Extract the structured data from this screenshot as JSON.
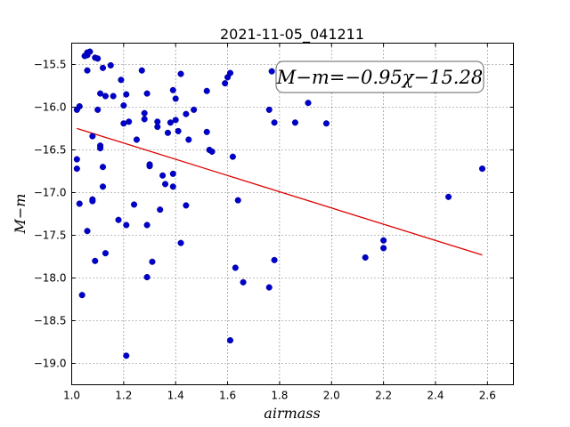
{
  "chart_data": {
    "type": "scatter",
    "title": "2021-11-05_041211",
    "xlabel": "airmass",
    "ylabel": "M−m",
    "xlim": [
      1.0,
      2.7
    ],
    "ylim": [
      -19.25,
      -15.25
    ],
    "y_inverted": true,
    "grid": true,
    "xticks": [
      "1.0",
      "1.2",
      "1.4",
      "1.6",
      "1.8",
      "2.0",
      "2.2",
      "2.4",
      "2.6"
    ],
    "yticks": [
      "−15.5",
      "−16.0",
      "−16.5",
      "−17.0",
      "−17.5",
      "−18.0",
      "−18.5",
      "−19.0"
    ],
    "annotation": "M−m=−0.95χ−15.28",
    "colors": {
      "points": "#0000cc",
      "fit_line": "#dd0000"
    },
    "fit": {
      "slope": -0.95,
      "intercept": -15.28,
      "x_range": [
        1.02,
        2.58
      ]
    },
    "points": [
      [
        1.02,
        -16.03
      ],
      [
        1.03,
        -15.99
      ],
      [
        1.02,
        -16.61
      ],
      [
        1.02,
        -16.72
      ],
      [
        1.03,
        -17.13
      ],
      [
        1.04,
        -18.2
      ],
      [
        1.05,
        -15.4
      ],
      [
        1.06,
        -15.36
      ],
      [
        1.06,
        -15.39
      ],
      [
        1.06,
        -15.57
      ],
      [
        1.06,
        -17.45
      ],
      [
        1.07,
        -15.35
      ],
      [
        1.08,
        -16.34
      ],
      [
        1.08,
        -17.08
      ],
      [
        1.08,
        -17.1
      ],
      [
        1.09,
        -15.42
      ],
      [
        1.09,
        -17.8
      ],
      [
        1.1,
        -15.43
      ],
      [
        1.1,
        -16.03
      ],
      [
        1.11,
        -16.45
      ],
      [
        1.11,
        -16.48
      ],
      [
        1.11,
        -15.84
      ],
      [
        1.12,
        -15.54
      ],
      [
        1.12,
        -16.7
      ],
      [
        1.12,
        -16.93
      ],
      [
        1.13,
        -15.87
      ],
      [
        1.13,
        -17.71
      ],
      [
        1.15,
        -15.51
      ],
      [
        1.16,
        -15.87
      ],
      [
        1.18,
        -17.32
      ],
      [
        1.19,
        -15.68
      ],
      [
        1.2,
        -15.98
      ],
      [
        1.2,
        -16.19
      ],
      [
        1.21,
        -15.85
      ],
      [
        1.21,
        -17.38
      ],
      [
        1.21,
        -18.91
      ],
      [
        1.22,
        -16.17
      ],
      [
        1.24,
        -17.14
      ],
      [
        1.25,
        -16.38
      ],
      [
        1.27,
        -15.57
      ],
      [
        1.28,
        -16.07
      ],
      [
        1.28,
        -16.14
      ],
      [
        1.29,
        -15.84
      ],
      [
        1.29,
        -17.38
      ],
      [
        1.29,
        -17.99
      ],
      [
        1.3,
        -16.67
      ],
      [
        1.3,
        -16.69
      ],
      [
        1.31,
        -17.81
      ],
      [
        1.33,
        -16.17
      ],
      [
        1.33,
        -16.23
      ],
      [
        1.34,
        -17.2
      ],
      [
        1.35,
        -16.8
      ],
      [
        1.36,
        -16.9
      ],
      [
        1.37,
        -16.3
      ],
      [
        1.38,
        -16.18
      ],
      [
        1.39,
        -15.8
      ],
      [
        1.39,
        -16.78
      ],
      [
        1.39,
        -16.93
      ],
      [
        1.4,
        -16.15
      ],
      [
        1.4,
        -15.9
      ],
      [
        1.41,
        -16.28
      ],
      [
        1.42,
        -15.61
      ],
      [
        1.42,
        -17.59
      ],
      [
        1.44,
        -16.08
      ],
      [
        1.44,
        -17.15
      ],
      [
        1.45,
        -16.38
      ],
      [
        1.47,
        -16.03
      ],
      [
        1.52,
        -15.81
      ],
      [
        1.52,
        -16.29
      ],
      [
        1.53,
        -16.5
      ],
      [
        1.54,
        -16.52
      ],
      [
        1.59,
        -15.72
      ],
      [
        1.6,
        -15.65
      ],
      [
        1.61,
        -15.6
      ],
      [
        1.61,
        -18.73
      ],
      [
        1.62,
        -16.58
      ],
      [
        1.63,
        -17.88
      ],
      [
        1.64,
        -17.09
      ],
      [
        1.66,
        -18.05
      ],
      [
        1.76,
        -16.03
      ],
      [
        1.76,
        -18.11
      ],
      [
        1.77,
        -15.58
      ],
      [
        1.78,
        -16.18
      ],
      [
        1.78,
        -17.79
      ],
      [
        1.86,
        -16.18
      ],
      [
        1.91,
        -15.95
      ],
      [
        1.98,
        -16.19
      ],
      [
        2.13,
        -17.76
      ],
      [
        2.2,
        -17.56
      ],
      [
        2.2,
        -17.65
      ],
      [
        2.45,
        -17.05
      ],
      [
        2.58,
        -16.72
      ]
    ]
  }
}
